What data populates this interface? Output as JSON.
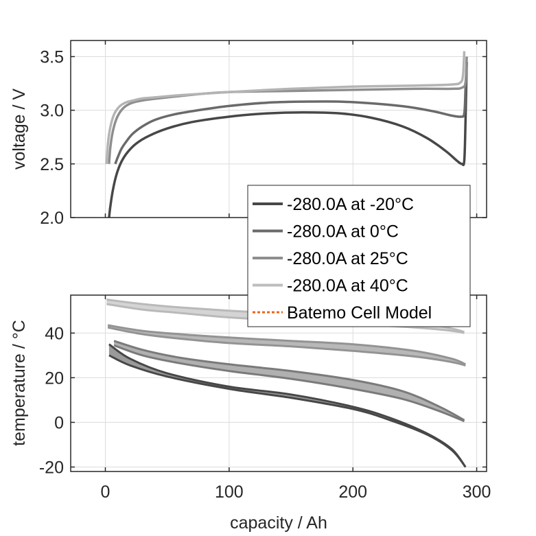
{
  "chart_data": [
    {
      "type": "line",
      "panel": "top",
      "title": "",
      "xlabel": "",
      "ylabel": "voltage / V",
      "xlim": [
        -28,
        308
      ],
      "ylim": [
        2.0,
        3.65
      ],
      "xticks": [
        0,
        100,
        200,
        300
      ],
      "xtick_labels_visible": false,
      "yticks": [
        2.0,
        2.5,
        3.0,
        3.5
      ],
      "ytick_labels": [
        "2.0",
        "2.5",
        "3.0",
        "3.5"
      ],
      "grid": true,
      "series": [
        {
          "name": "-280.0A at -20°C",
          "color": "#474747",
          "x": [
            3,
            4,
            6,
            9,
            13,
            18,
            25,
            35,
            50,
            70,
            100,
            130,
            160,
            190,
            215,
            240,
            260,
            275,
            284,
            288,
            290,
            291,
            292
          ],
          "y": [
            2.0,
            2.1,
            2.25,
            2.4,
            2.52,
            2.61,
            2.69,
            2.76,
            2.83,
            2.89,
            2.94,
            2.97,
            2.98,
            2.97,
            2.93,
            2.85,
            2.74,
            2.62,
            2.53,
            2.5,
            2.53,
            2.9,
            3.45
          ]
        },
        {
          "name": "-280.0A at 0°C",
          "color": "#6a6a6a",
          "x": [
            8,
            10,
            13,
            17,
            22,
            30,
            40,
            55,
            75,
            100,
            130,
            160,
            190,
            220,
            245,
            265,
            280,
            287,
            290,
            291,
            292
          ],
          "y": [
            2.5,
            2.56,
            2.64,
            2.71,
            2.78,
            2.85,
            2.91,
            2.96,
            3.0,
            3.04,
            3.07,
            3.08,
            3.08,
            3.06,
            3.03,
            2.99,
            2.95,
            2.94,
            2.97,
            3.2,
            3.45
          ]
        },
        {
          "name": "-280.0A at 25°C",
          "color": "#8e8e8e",
          "x": [
            3,
            4,
            6,
            9,
            13,
            18,
            25,
            35,
            50,
            75,
            100,
            150,
            200,
            250,
            280,
            288,
            291,
            292
          ],
          "y": [
            2.5,
            2.65,
            2.8,
            2.92,
            3.0,
            3.05,
            3.08,
            3.1,
            3.12,
            3.15,
            3.17,
            3.18,
            3.19,
            3.2,
            3.2,
            3.21,
            3.26,
            3.5
          ]
        },
        {
          "name": "-280.0A at 40°C",
          "color": "#b4b4b4",
          "x": [
            1,
            2,
            4,
            7,
            11,
            16,
            22,
            30,
            40,
            60,
            100,
            150,
            200,
            250,
            280,
            287,
            289,
            290
          ],
          "y": [
            2.5,
            2.68,
            2.84,
            2.96,
            3.03,
            3.07,
            3.09,
            3.11,
            3.12,
            3.14,
            3.17,
            3.2,
            3.22,
            3.23,
            3.24,
            3.26,
            3.33,
            3.55
          ]
        }
      ]
    },
    {
      "type": "area",
      "panel": "bottom",
      "title": "",
      "xlabel": "capacity / Ah",
      "ylabel": "temperature / °C",
      "xlim": [
        -28,
        308
      ],
      "ylim": [
        -22,
        57
      ],
      "xticks": [
        0,
        100,
        200,
        300
      ],
      "xtick_labels": [
        "0",
        "100",
        "200",
        "300"
      ],
      "yticks": [
        -20,
        0,
        20,
        40
      ],
      "ytick_labels": [
        "-20",
        "0",
        "20",
        "40"
      ],
      "grid": true,
      "note": "Each condition drawn as a band (min/max envelope) of temperature readings",
      "series": [
        {
          "name": "-280.0A at -20°C",
          "color": "#474747",
          "fill": "#9a9a9a",
          "x": [
            3,
            20,
            50,
            100,
            150,
            200,
            230,
            260,
            280,
            291
          ],
          "upper": [
            35,
            28.5,
            22,
            16,
            12.5,
            7,
            2,
            -5,
            -12,
            -20
          ],
          "lower": [
            30,
            25.5,
            20.5,
            15,
            11,
            6,
            1,
            -5.5,
            -12.5,
            -20
          ]
        },
        {
          "name": "-280.0A at 0°C",
          "color": "#7a7a7a",
          "fill": "#b0b0b0",
          "x": [
            7,
            30,
            60,
            100,
            150,
            200,
            240,
            270,
            290
          ],
          "upper": [
            36.5,
            32.5,
            29,
            26,
            23,
            19,
            14,
            7,
            1
          ],
          "lower": [
            34.5,
            30,
            26.5,
            23,
            19.5,
            15,
            10.5,
            5,
            0.5
          ]
        },
        {
          "name": "-280.0A at 25°C",
          "color": "#939393",
          "fill": "#b8b8b8",
          "x": [
            2,
            30,
            60,
            100,
            150,
            200,
            250,
            280,
            291
          ],
          "upper": [
            43.5,
            41,
            39.5,
            38,
            36.5,
            35,
            32,
            28.5,
            26
          ],
          "lower": [
            42.5,
            39.5,
            37.5,
            35.5,
            34,
            32,
            29.5,
            27,
            25.5
          ]
        },
        {
          "name": "-280.0A at 40°C",
          "color": "#b9b9b9",
          "fill": "#d4d4d4",
          "x": [
            1,
            30,
            60,
            100,
            150,
            200,
            250,
            280,
            290
          ],
          "upper": [
            55,
            53,
            51.5,
            50,
            48.5,
            47,
            45,
            42,
            40.5
          ],
          "lower": [
            53,
            50.5,
            49,
            47,
            45.5,
            44,
            42.5,
            41,
            40
          ]
        },
        {
          "name": "Batemo Cell Model",
          "color": "#e8651b",
          "dashed": true,
          "x": [],
          "y": []
        }
      ]
    }
  ],
  "legend": {
    "placement": "center-right overlapping both panels",
    "entries": [
      {
        "label": "-280.0A at -20°C",
        "color": "#474747",
        "style": "solid"
      },
      {
        "label": "-280.0A at 0°C",
        "color": "#6a6a6a",
        "style": "solid"
      },
      {
        "label": "-280.0A at 25°C",
        "color": "#8e8e8e",
        "style": "solid"
      },
      {
        "label": "-280.0A at 40°C",
        "color": "#bdbdbd",
        "style": "solid"
      },
      {
        "label": "Batemo Cell Model",
        "color": "#e8651b",
        "style": "dotted"
      }
    ]
  }
}
